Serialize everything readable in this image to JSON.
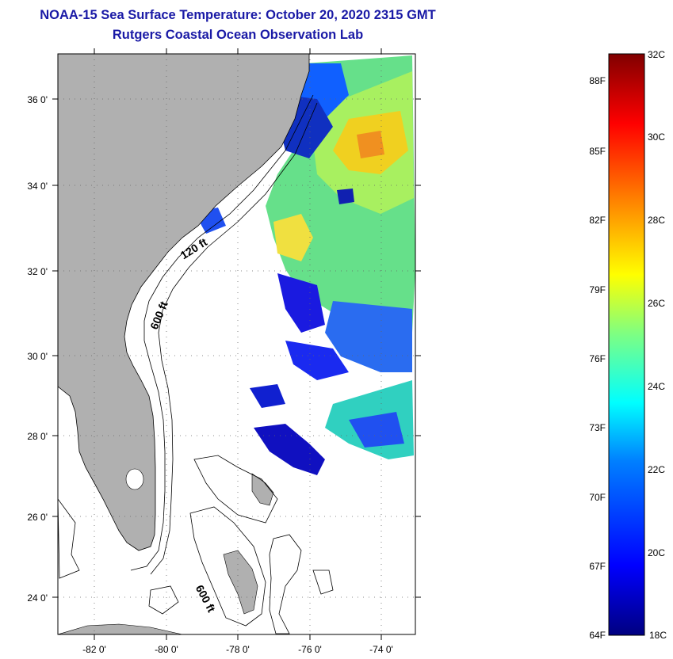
{
  "title": {
    "line1": "NOAA-15 Sea Surface Temperature:  October 20, 2020 2315 GMT",
    "line2": "Rutgers Coastal Ocean Observation Lab"
  },
  "map": {
    "lat_labels": [
      "36 0'",
      "34 0'",
      "32 0'",
      "30 0'",
      "28 0'",
      "26 0'",
      "24 0'"
    ],
    "lon_labels": [
      "-82 0'",
      "-80 0'",
      "-78 0'",
      "-76 0'",
      "-74 0'"
    ],
    "contours": [
      "120 ft",
      "600 ft",
      "600 ft"
    ],
    "colors": {
      "land": "#b0b0b0",
      "ocean_nodata": "#ffffff",
      "coast": "#000000"
    }
  },
  "colorbar": {
    "celsius": [
      "32C",
      "30C",
      "28C",
      "26C",
      "24C",
      "22C",
      "20C",
      "18C"
    ],
    "fahrenheit": [
      "88F",
      "85F",
      "82F",
      "79F",
      "76F",
      "73F",
      "70F",
      "67F",
      "64F"
    ],
    "colors": [
      "#000080",
      "#0000ff",
      "#0080ff",
      "#00ffff",
      "#80ff80",
      "#ffff00",
      "#ff8000",
      "#ff0000",
      "#800000"
    ]
  }
}
